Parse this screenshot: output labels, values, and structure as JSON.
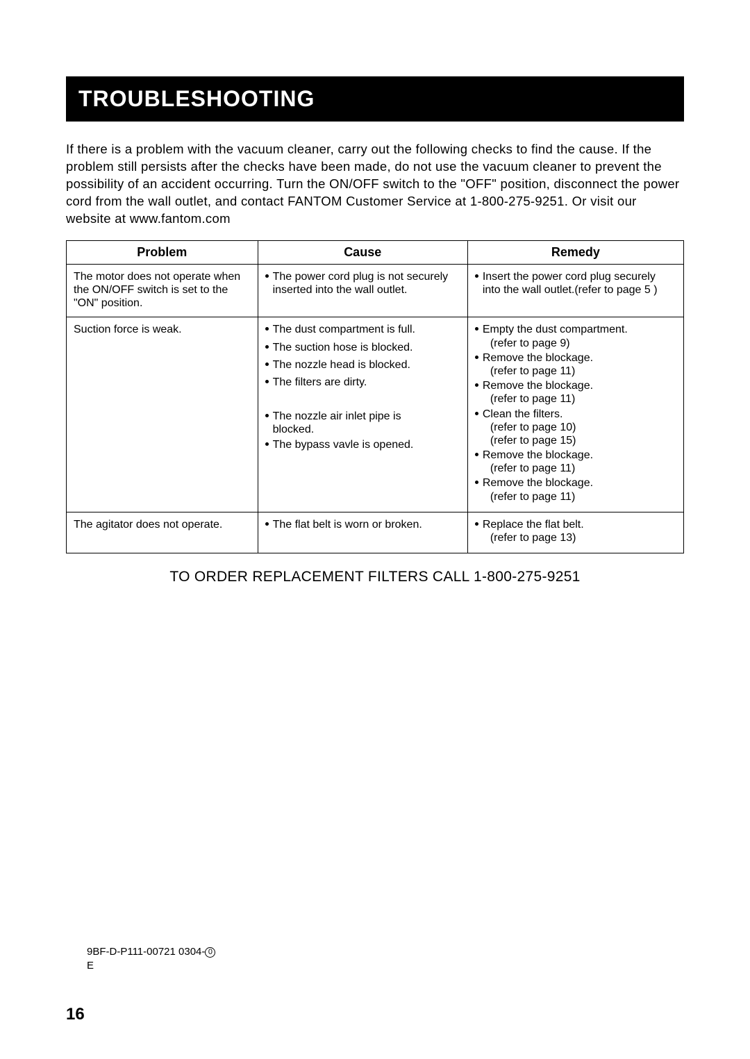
{
  "title": "TROUBLESHOOTING",
  "intro": "If there is a problem with the vacuum cleaner, carry out the following checks to find the cause. If the problem still persists after the checks have been made, do not use the vacuum cleaner to prevent the possibility of an accident occurring. Turn the ON/OFF switch to the \"OFF\" position, disconnect the power cord from the wall outlet, and contact FANTOM Customer Service at 1-800-275-9251. Or visit our website at www.fantom.com",
  "headers": {
    "problem": "Problem",
    "cause": "Cause",
    "remedy": "Remedy"
  },
  "rows": {
    "r1": {
      "problem": "The motor does not operate when the ON/OFF switch is set to the \"ON\" position.",
      "cause1": "The  power  cord  plug is not securely inserted into the wall outlet.",
      "remedy1a": "Insert  the  power  cord  plug securely  into  the  wall outlet.(refer  to  page  5 )"
    },
    "r2": {
      "problem": "Suction force is weak.",
      "cause1": "The dust compartment is full.",
      "cause2": "The  suction hose is blocked.",
      "cause3": "The  nozzle head is blocked.",
      "cause4": "The  filters  are  dirty.",
      "cause5a": "The  nozzle air inlet pipe is",
      "cause5b": "blocked.",
      "cause6": "The bypass vavle is opened.",
      "remedy1": "Empty the dust compartment.",
      "remedy1ref": "(refer to page 9)",
      "remedy2": "Remove the blockage.",
      "remedy2ref": "(refer to page 11)",
      "remedy3": "Remove the blockage.",
      "remedy3ref": "(refer to page 11)",
      "remedy4": "Clean the filters.",
      "remedy4ref1": "(refer to page 10)",
      "remedy4ref2": "(refer to page 15)",
      "remedy5": "Remove the blockage.",
      "remedy5ref": "(refer to page 11)",
      "remedy6": "Remove the blockage.",
      "remedy6ref": "(refer to page 11)"
    },
    "r3": {
      "problem": "The agitator does not operate.",
      "cause1": "The flat belt is worn or broken.",
      "remedy1": "Replace the flat belt.",
      "remedy1ref": "(refer to page 13)"
    }
  },
  "order_line": "TO ORDER REPLACEMENT FILTERS CALL 1-800-275-9251",
  "footer": {
    "line1a": "9BF-D-P111-00721 0304-",
    "line1b": "0",
    "line2": "E"
  },
  "page_number": "16"
}
